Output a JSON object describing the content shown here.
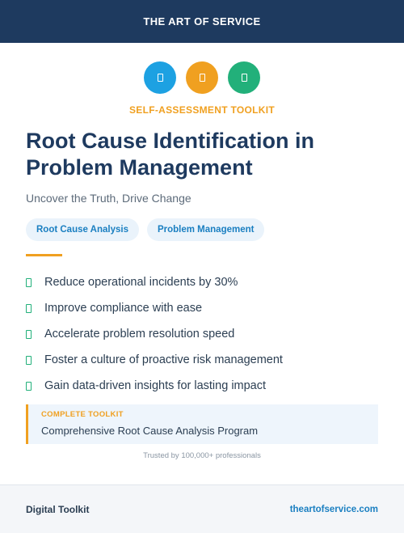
{
  "header": {
    "brand": "THE ART OF SERVICE"
  },
  "icons": [
    {
      "name": "document-icon",
      "color": "#1da1e2"
    },
    {
      "name": "document-icon",
      "color": "#f0a020"
    },
    {
      "name": "document-icon",
      "color": "#22b07a"
    }
  ],
  "hero": {
    "kicker": "SELF-ASSESSMENT TOOLKIT",
    "title": "Root Cause Identification in Problem Management",
    "subtitle": "Uncover the Truth, Drive Change",
    "tags": [
      "Root Cause Analysis",
      "Problem Management"
    ]
  },
  "benefits": [
    "Reduce operational incidents by 30%",
    "Improve compliance with ease",
    "Accelerate problem resolution speed",
    "Foster a culture of proactive risk management",
    "Gain data-driven insights for lasting impact"
  ],
  "callout": {
    "kicker": "COMPLETE TOOLKIT",
    "text": "Comprehensive Root Cause Analysis Program"
  },
  "trusted": "Trusted by 100,000+ professionals",
  "footer": {
    "left": "Digital Toolkit",
    "link": "theartofservice.com"
  },
  "colors": {
    "navy": "#1e3a5f",
    "accent_orange": "#f0a020",
    "accent_blue": "#1a7fc1",
    "accent_green": "#22b07a"
  }
}
